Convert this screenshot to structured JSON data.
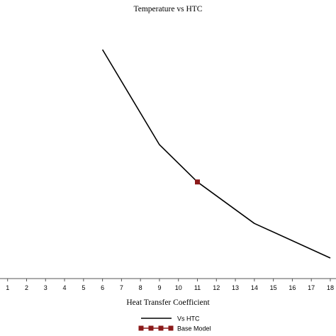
{
  "chart_data": {
    "type": "line",
    "title": "Temperature vs HTC",
    "xlabel": "Heat Transfer Coefficient",
    "ylabel": "",
    "x_ticks": [
      1,
      2,
      3,
      4,
      5,
      6,
      7,
      8,
      9,
      10,
      11,
      12,
      13,
      14,
      15,
      16,
      17,
      18
    ],
    "xlim": [
      0.6,
      18.3
    ],
    "ylim": [
      0,
      100
    ],
    "y_axis_visible": false,
    "grid": false,
    "legend_position": "bottom-center",
    "series": [
      {
        "name": "Vs HTC",
        "color": "#000000",
        "marker": "none",
        "x": [
          6,
          9,
          11,
          14,
          18
        ],
        "y": [
          100,
          54.4,
          36.5,
          16.6,
          0
        ]
      },
      {
        "name": "Base Model",
        "color": "#8b1a1a",
        "marker": "square",
        "x": [
          11
        ],
        "y": [
          36.5
        ]
      }
    ]
  }
}
